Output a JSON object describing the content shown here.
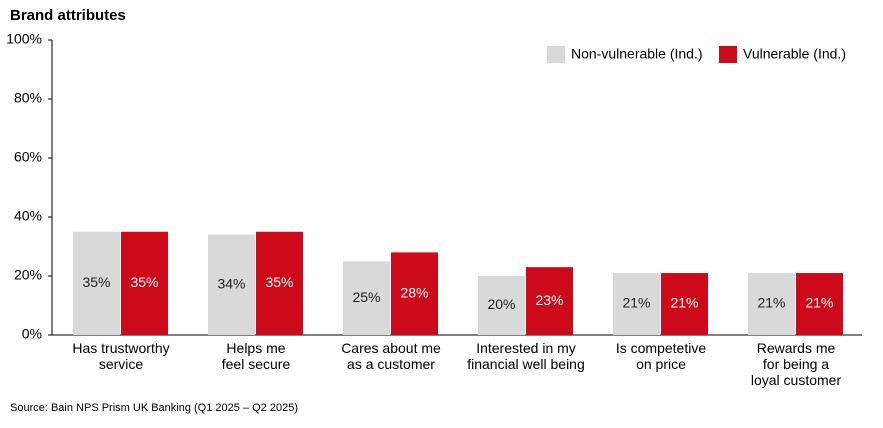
{
  "chart_data": {
    "type": "bar",
    "title": "Brand attributes",
    "source": "Source: Bain NPS Prism UK Banking (Q1 2025 – Q2 2025)",
    "categories": [
      "Has trustworthy\nservice",
      "Helps me\nfeel secure",
      "Cares about me\nas a customer",
      "Interested in my\nfinancial well being",
      "Is competetive\non price",
      "Rewards me\nfor being a\nloyal customer"
    ],
    "series": [
      {
        "name": "Non-vulnerable (Ind.)",
        "color": "#d9d9d9",
        "label_color": "#222222",
        "values": [
          35,
          34,
          25,
          20,
          21,
          21
        ],
        "value_labels": [
          "35%",
          "34%",
          "25%",
          "20%",
          "21%",
          "21%"
        ]
      },
      {
        "name": "Vulnerable (Ind.)",
        "color": "#cc0a1a",
        "label_color": "#ffffff",
        "values": [
          35,
          35,
          28,
          23,
          21,
          21
        ],
        "value_labels": [
          "35%",
          "35%",
          "28%",
          "23%",
          "21%",
          "21%"
        ]
      }
    ],
    "ylim": [
      0,
      100
    ],
    "yticks": [
      {
        "value": 0,
        "label": "0%"
      },
      {
        "value": 20,
        "label": "20%"
      },
      {
        "value": 40,
        "label": "40%"
      },
      {
        "value": 60,
        "label": "60%"
      },
      {
        "value": 80,
        "label": "80%"
      },
      {
        "value": 100,
        "label": "100%"
      }
    ],
    "grid": false,
    "legend": "top-right"
  }
}
